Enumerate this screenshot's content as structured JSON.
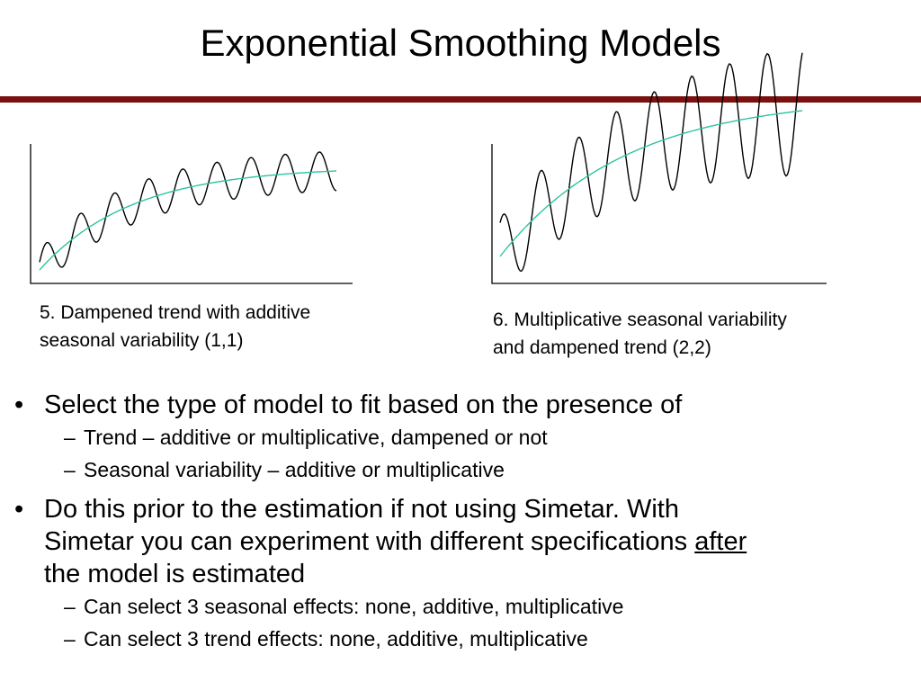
{
  "title": "Exponential Smoothing Models",
  "colors": {
    "rule": "#7B1010",
    "axis": "#000000",
    "series": "#000000",
    "trend": "#2EC4A0"
  },
  "charts": {
    "left": {
      "caption_line1": "5. Dampened trend with additive",
      "caption_line2": "seasonal variability (1,1)"
    },
    "right": {
      "caption_line1": "6. Multiplicative seasonal variability",
      "caption_line2": "and dampened trend (2,2)"
    }
  },
  "bullets": [
    {
      "text": "Select the type of model to fit based on the presence of",
      "subs": [
        "Trend – additive or multiplicative, dampened or not",
        "Seasonal variability – additive or multiplicative"
      ]
    },
    {
      "line1": "Do this prior to the estimation if not using Simetar.  With",
      "line2_pre": "Simetar you can experiment with different specifications ",
      "line2_underlined": "after",
      "line3": "the model is estimated",
      "subs": [
        "Can select 3 seasonal effects: none, additive, multiplicative",
        "Can select 3 trend effects: none, additive, multiplicative"
      ]
    }
  ],
  "bullet_glyph": "•",
  "dash_glyph": "–"
}
